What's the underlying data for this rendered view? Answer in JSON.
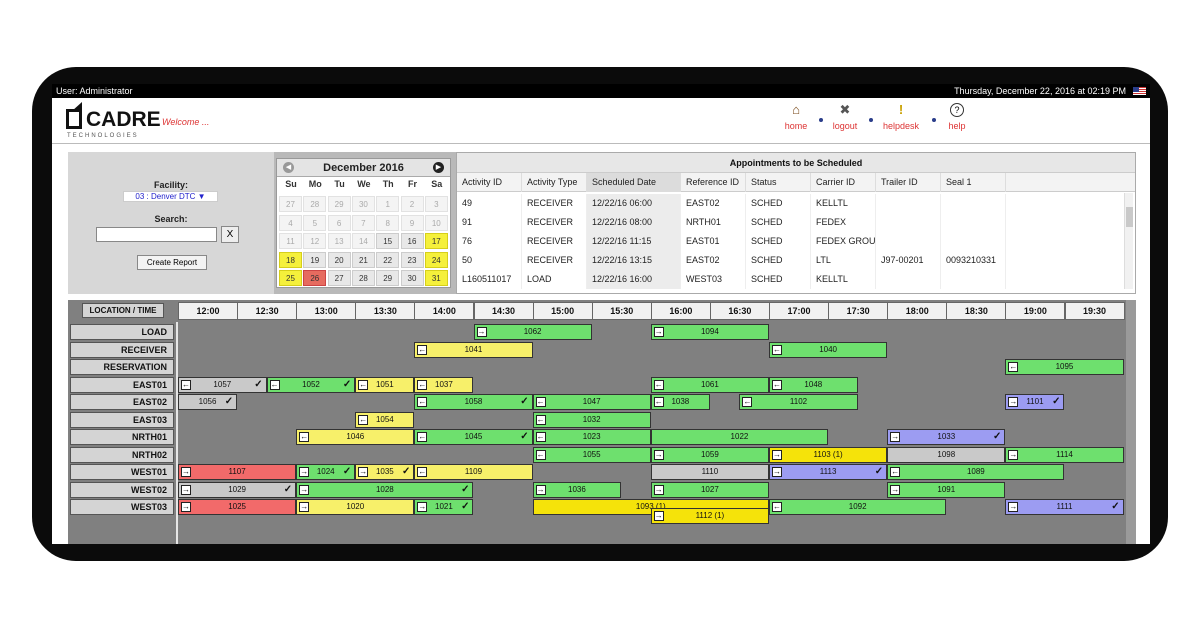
{
  "topbar": {
    "user": "User: Administrator",
    "datetime": "Thursday, December 22, 2016 at 02:19 PM"
  },
  "header": {
    "logo_text": "CADRE",
    "logo_sub": "TECHNOLOGIES",
    "welcome": "Welcome ...",
    "nav": [
      {
        "label": "home",
        "icon": "home-icon"
      },
      {
        "label": "logout",
        "icon": "logout-icon"
      },
      {
        "label": "helpdesk",
        "icon": "helpdesk-icon"
      },
      {
        "label": "help",
        "icon": "help-icon"
      }
    ]
  },
  "filters": {
    "facility_label": "Facility:",
    "facility_value": "03 : Denver DTC ▼",
    "search_label": "Search:",
    "search_value": "",
    "clear_label": "X",
    "create_report": "Create Report"
  },
  "calendar": {
    "title": "December 2016",
    "dow": [
      "Su",
      "Mo",
      "Tu",
      "We",
      "Th",
      "Fr",
      "Sa"
    ],
    "weeks": [
      [
        [
          "27",
          "other"
        ],
        [
          "28",
          "other"
        ],
        [
          "29",
          "other"
        ],
        [
          "30",
          "other"
        ],
        [
          "1",
          "other"
        ],
        [
          "2",
          "other"
        ],
        [
          "3",
          "other"
        ]
      ],
      [
        [
          "4",
          "other"
        ],
        [
          "5",
          "other"
        ],
        [
          "6",
          "other"
        ],
        [
          "7",
          "other"
        ],
        [
          "8",
          "other"
        ],
        [
          "9",
          "other"
        ],
        [
          "10",
          "other"
        ]
      ],
      [
        [
          "11",
          "other"
        ],
        [
          "12",
          "other"
        ],
        [
          "13",
          "other"
        ],
        [
          "14",
          "other"
        ],
        [
          "15",
          "cur"
        ],
        [
          "16",
          "cur"
        ],
        [
          "17",
          "hl"
        ]
      ],
      [
        [
          "18",
          "hl"
        ],
        [
          "19",
          "cur"
        ],
        [
          "20",
          "cur"
        ],
        [
          "21",
          "cur"
        ],
        [
          "22",
          "cur"
        ],
        [
          "23",
          "cur"
        ],
        [
          "24",
          "hl"
        ]
      ],
      [
        [
          "25",
          "hl"
        ],
        [
          "26",
          "today"
        ],
        [
          "27",
          "cur"
        ],
        [
          "28",
          "cur"
        ],
        [
          "29",
          "cur"
        ],
        [
          "30",
          "cur"
        ],
        [
          "31",
          "hl"
        ]
      ]
    ]
  },
  "appointments": {
    "title": "Appointments to be Scheduled",
    "columns": [
      "Activity ID",
      "Activity Type",
      "Scheduled Date",
      "Reference ID",
      "Status",
      "Carrier ID",
      "Trailer ID",
      "Seal 1"
    ],
    "rows": [
      [
        "49",
        "RECEIVER",
        "12/22/16 06:00",
        "EAST02",
        "SCHED",
        "KELLTL",
        "",
        ""
      ],
      [
        "91",
        "RECEIVER",
        "12/22/16 08:00",
        "NRTH01",
        "SCHED",
        "FEDEX",
        "",
        ""
      ],
      [
        "76",
        "RECEIVER",
        "12/22/16 11:15",
        "EAST01",
        "SCHED",
        "FEDEX GROU",
        "",
        ""
      ],
      [
        "50",
        "RECEIVER",
        "12/22/16 13:15",
        "EAST02",
        "SCHED",
        "LTL",
        "J97-00201",
        "0093210331"
      ],
      [
        "L160511017",
        "LOAD",
        "12/22/16 16:00",
        "WEST03",
        "SCHED",
        "KELLTL",
        "",
        ""
      ]
    ]
  },
  "gantt": {
    "corner": "LOCATION / TIME",
    "times": [
      "12:00",
      "12:30",
      "13:00",
      "13:30",
      "14:00",
      "14:30",
      "15:00",
      "15:30",
      "16:00",
      "16:30",
      "17:00",
      "17:30",
      "18:00",
      "18:30",
      "19:00",
      "19:30"
    ],
    "rows": [
      "LOAD",
      "RECEIVER",
      "RESERVATION",
      "EAST01",
      "EAST02",
      "EAST03",
      "NRTH01",
      "NRTH02",
      "WEST01",
      "WEST02",
      "WEST03"
    ],
    "colors": {
      "green": "#6ee06e",
      "yellow": "#f7f06a",
      "red": "#f26a6a",
      "gray": "#c9c9c9",
      "blue": "#9c9cf2",
      "gold": "#f5e30a"
    },
    "bars": [
      {
        "row": 0,
        "start": 14.5,
        "end": 15.5,
        "label": "1062",
        "color": "green",
        "dir": "in",
        "check": false
      },
      {
        "row": 0,
        "start": 16.0,
        "end": 17.0,
        "label": "1094",
        "color": "green",
        "dir": "in",
        "check": false
      },
      {
        "row": 1,
        "start": 14.0,
        "end": 15.0,
        "label": "1041",
        "color": "yellow",
        "dir": "out",
        "check": false
      },
      {
        "row": 1,
        "start": 17.0,
        "end": 18.0,
        "label": "1040",
        "color": "green",
        "dir": "out",
        "check": false
      },
      {
        "row": 2,
        "start": 19.0,
        "end": 20.0,
        "label": "1095",
        "color": "green",
        "dir": "out",
        "check": false
      },
      {
        "row": 3,
        "start": 12.0,
        "end": 12.75,
        "label": "1057",
        "color": "gray",
        "dir": "out",
        "check": true
      },
      {
        "row": 3,
        "start": 12.75,
        "end": 13.5,
        "label": "1052",
        "color": "green",
        "dir": "out",
        "check": true
      },
      {
        "row": 3,
        "start": 13.5,
        "end": 14.0,
        "label": "1051",
        "color": "yellow",
        "dir": "out",
        "check": false
      },
      {
        "row": 3,
        "start": 14.0,
        "end": 14.5,
        "label": "1037",
        "color": "yellow",
        "dir": "out",
        "check": false
      },
      {
        "row": 3,
        "start": 16.0,
        "end": 17.0,
        "label": "1061",
        "color": "green",
        "dir": "out",
        "check": false
      },
      {
        "row": 3,
        "start": 17.0,
        "end": 17.75,
        "label": "1048",
        "color": "green",
        "dir": "out",
        "check": false
      },
      {
        "row": 4,
        "start": 12.0,
        "end": 12.5,
        "label": "1056",
        "color": "gray",
        "dir": "none",
        "check": true
      },
      {
        "row": 4,
        "start": 14.0,
        "end": 15.0,
        "label": "1058",
        "color": "green",
        "dir": "out",
        "check": true
      },
      {
        "row": 4,
        "start": 15.0,
        "end": 16.0,
        "label": "1047",
        "color": "green",
        "dir": "out",
        "check": false
      },
      {
        "row": 4,
        "start": 16.0,
        "end": 16.5,
        "label": "1038",
        "color": "green",
        "dir": "out",
        "check": false
      },
      {
        "row": 4,
        "start": 16.75,
        "end": 17.75,
        "label": "1102",
        "color": "green",
        "dir": "out",
        "check": false
      },
      {
        "row": 4,
        "start": 19.0,
        "end": 19.5,
        "label": "1101",
        "color": "blue",
        "dir": "in",
        "check": true
      },
      {
        "row": 5,
        "start": 13.5,
        "end": 14.0,
        "label": "1054",
        "color": "yellow",
        "dir": "out",
        "check": false
      },
      {
        "row": 5,
        "start": 15.0,
        "end": 16.0,
        "label": "1032",
        "color": "green",
        "dir": "out",
        "check": false
      },
      {
        "row": 6,
        "start": 13.0,
        "end": 14.0,
        "label": "1046",
        "color": "yellow",
        "dir": "out",
        "check": false
      },
      {
        "row": 6,
        "start": 14.0,
        "end": 15.0,
        "label": "1045",
        "color": "green",
        "dir": "out",
        "check": true
      },
      {
        "row": 6,
        "start": 15.0,
        "end": 16.0,
        "label": "1023",
        "color": "green",
        "dir": "out",
        "check": false
      },
      {
        "row": 6,
        "start": 16.0,
        "end": 17.5,
        "label": "1022",
        "color": "green",
        "dir": "none",
        "check": false
      },
      {
        "row": 6,
        "start": 18.0,
        "end": 19.0,
        "label": "1033",
        "color": "blue",
        "dir": "in",
        "check": true
      },
      {
        "row": 7,
        "start": 15.0,
        "end": 16.0,
        "label": "1055",
        "color": "green",
        "dir": "out",
        "check": false
      },
      {
        "row": 7,
        "start": 16.0,
        "end": 17.0,
        "label": "1059",
        "color": "green",
        "dir": "in",
        "check": false
      },
      {
        "row": 7,
        "start": 17.0,
        "end": 18.0,
        "label": "1103 (1)",
        "color": "gold",
        "dir": "in",
        "check": false
      },
      {
        "row": 7,
        "start": 18.0,
        "end": 19.0,
        "label": "1098",
        "color": "gray",
        "dir": "none",
        "check": false
      },
      {
        "row": 7,
        "start": 19.0,
        "end": 20.0,
        "label": "1114",
        "color": "green",
        "dir": "in",
        "check": false
      },
      {
        "row": 8,
        "start": 12.0,
        "end": 13.0,
        "label": "1107",
        "color": "red",
        "dir": "in",
        "check": false
      },
      {
        "row": 8,
        "start": 13.0,
        "end": 13.5,
        "label": "1024",
        "color": "green",
        "dir": "in",
        "check": true
      },
      {
        "row": 8,
        "start": 13.5,
        "end": 14.0,
        "label": "1035",
        "color": "yellow",
        "dir": "in",
        "check": true
      },
      {
        "row": 8,
        "start": 14.0,
        "end": 15.0,
        "label": "1109",
        "color": "yellow",
        "dir": "out",
        "check": false
      },
      {
        "row": 8,
        "start": 16.0,
        "end": 17.0,
        "label": "1110",
        "color": "gray",
        "dir": "none",
        "check": false
      },
      {
        "row": 8,
        "start": 17.0,
        "end": 18.0,
        "label": "1113",
        "color": "blue",
        "dir": "in",
        "check": true
      },
      {
        "row": 8,
        "start": 18.0,
        "end": 19.5,
        "label": "1089",
        "color": "green",
        "dir": "out",
        "check": false
      },
      {
        "row": 9,
        "start": 12.0,
        "end": 13.0,
        "label": "1029",
        "color": "gray",
        "dir": "in",
        "check": true
      },
      {
        "row": 9,
        "start": 13.0,
        "end": 14.5,
        "label": "1028",
        "color": "green",
        "dir": "in",
        "check": true
      },
      {
        "row": 9,
        "start": 15.0,
        "end": 15.75,
        "label": "1036",
        "color": "green",
        "dir": "in",
        "check": false
      },
      {
        "row": 9,
        "start": 16.0,
        "end": 17.0,
        "label": "1027",
        "color": "green",
        "dir": "in",
        "check": false
      },
      {
        "row": 9,
        "start": 18.0,
        "end": 19.0,
        "label": "1091",
        "color": "green",
        "dir": "in",
        "check": false
      },
      {
        "row": 10,
        "start": 12.0,
        "end": 13.0,
        "label": "1025",
        "color": "red",
        "dir": "in",
        "check": false
      },
      {
        "row": 10,
        "start": 13.0,
        "end": 14.0,
        "label": "1020",
        "color": "yellow",
        "dir": "in",
        "check": false
      },
      {
        "row": 10,
        "start": 14.0,
        "end": 14.5,
        "label": "1021",
        "color": "green",
        "dir": "in",
        "check": true
      },
      {
        "row": 10,
        "start": 15.0,
        "end": 17.0,
        "label": "1093 (1)",
        "color": "gold",
        "dir": "none",
        "check": false
      },
      {
        "row": 10,
        "start": 17.0,
        "end": 18.5,
        "label": "1092",
        "color": "green",
        "dir": "out",
        "check": false
      },
      {
        "row": 10,
        "start": 19.0,
        "end": 20.0,
        "label": "1111",
        "color": "blue",
        "dir": "in",
        "check": true
      },
      {
        "row": 10.5,
        "start": 16.0,
        "end": 17.0,
        "label": "1112 (1)",
        "color": "gold",
        "dir": "in",
        "check": false
      }
    ]
  }
}
